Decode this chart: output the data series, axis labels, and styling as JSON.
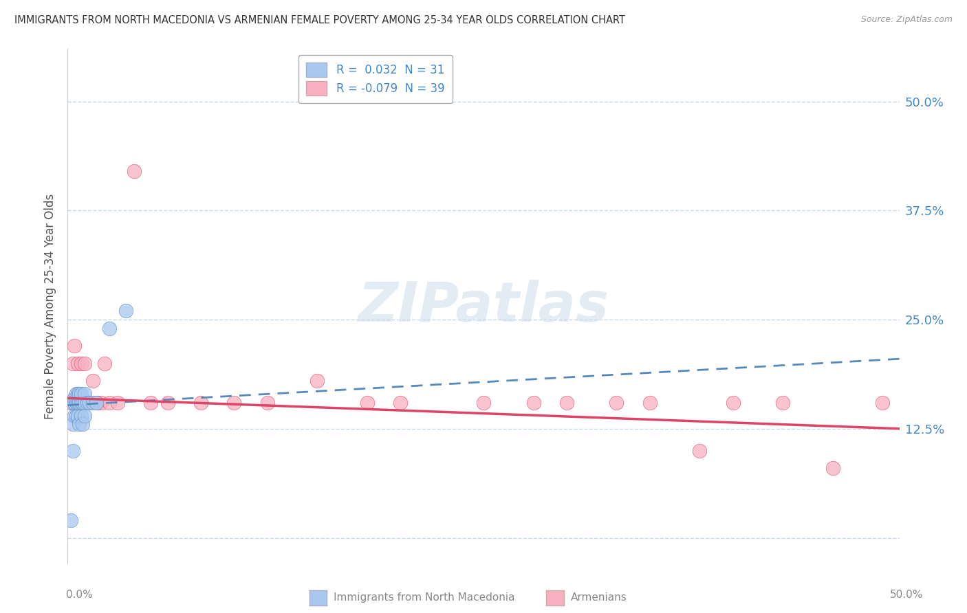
{
  "title": "IMMIGRANTS FROM NORTH MACEDONIA VS ARMENIAN FEMALE POVERTY AMONG 25-34 YEAR OLDS CORRELATION CHART",
  "source": "Source: ZipAtlas.com",
  "ylabel": "Female Poverty Among 25-34 Year Olds",
  "xlim": [
    0.0,
    0.5
  ],
  "ylim": [
    -0.03,
    0.56
  ],
  "yticks": [
    0.0,
    0.125,
    0.25,
    0.375,
    0.5
  ],
  "ytick_labels": [
    "",
    "12.5%",
    "25.0%",
    "37.5%",
    "50.0%"
  ],
  "grid_color": "#c8d8e8",
  "background_color": "#ffffff",
  "series1_color": "#a8c8f0",
  "series2_color": "#f8b0c0",
  "line1_color": "#5588bb",
  "line2_color": "#dd4466",
  "macedonian_x": [
    0.002,
    0.003,
    0.003,
    0.003,
    0.004,
    0.004,
    0.004,
    0.005,
    0.005,
    0.005,
    0.005,
    0.006,
    0.006,
    0.006,
    0.007,
    0.007,
    0.007,
    0.008,
    0.008,
    0.008,
    0.009,
    0.009,
    0.01,
    0.01,
    0.01,
    0.012,
    0.013,
    0.015,
    0.017,
    0.025,
    0.035
  ],
  "macedonian_y": [
    0.02,
    0.1,
    0.13,
    0.155,
    0.14,
    0.155,
    0.16,
    0.14,
    0.155,
    0.16,
    0.165,
    0.14,
    0.155,
    0.165,
    0.13,
    0.155,
    0.165,
    0.14,
    0.155,
    0.165,
    0.13,
    0.155,
    0.14,
    0.155,
    0.165,
    0.155,
    0.155,
    0.155,
    0.155,
    0.24,
    0.26
  ],
  "armenian_x": [
    0.002,
    0.003,
    0.004,
    0.004,
    0.005,
    0.006,
    0.006,
    0.007,
    0.008,
    0.008,
    0.009,
    0.01,
    0.01,
    0.012,
    0.015,
    0.018,
    0.02,
    0.022,
    0.025,
    0.03,
    0.04,
    0.05,
    0.06,
    0.08,
    0.1,
    0.12,
    0.15,
    0.18,
    0.2,
    0.25,
    0.28,
    0.3,
    0.33,
    0.35,
    0.38,
    0.4,
    0.43,
    0.46,
    0.49
  ],
  "armenian_y": [
    0.155,
    0.2,
    0.155,
    0.22,
    0.155,
    0.155,
    0.2,
    0.155,
    0.155,
    0.2,
    0.155,
    0.155,
    0.2,
    0.155,
    0.18,
    0.155,
    0.155,
    0.2,
    0.155,
    0.155,
    0.42,
    0.155,
    0.155,
    0.155,
    0.155,
    0.155,
    0.18,
    0.155,
    0.155,
    0.155,
    0.155,
    0.155,
    0.155,
    0.155,
    0.1,
    0.155,
    0.155,
    0.08,
    0.155
  ]
}
